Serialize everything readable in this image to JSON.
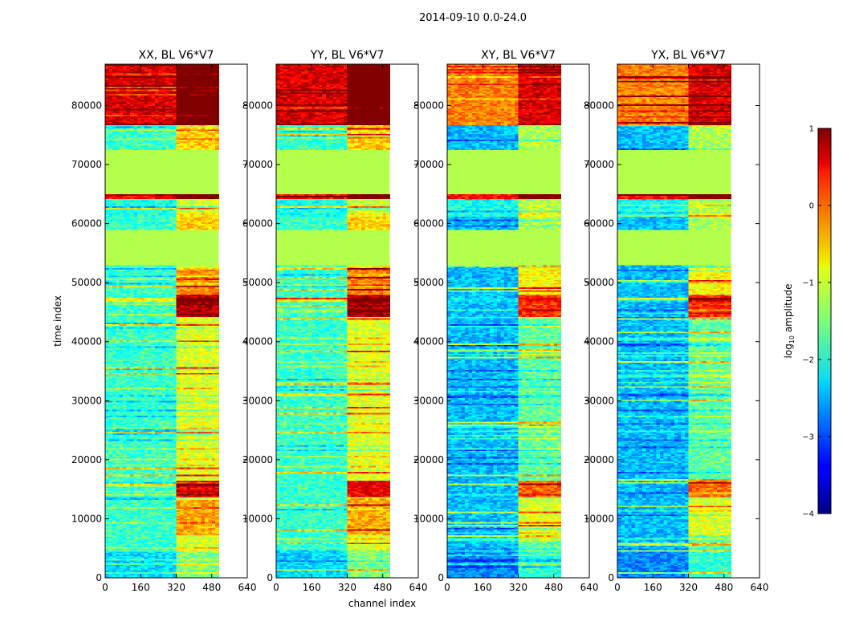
{
  "figure": {
    "suptitle": "2014-09-10 0.0-24.0",
    "xlabel": "channel index",
    "ylabel": "time index"
  },
  "chart_data": {
    "type": "heatmap",
    "title": "2014-09-10 0.0-24.0",
    "xlabel": "channel index",
    "ylabel": "time index",
    "xlim": [
      0,
      640
    ],
    "ylim": [
      0,
      87000
    ],
    "x_ticks": [
      0,
      160,
      320,
      480,
      640
    ],
    "y_ticks": [
      0,
      10000,
      20000,
      30000,
      40000,
      50000,
      60000,
      70000,
      80000
    ],
    "data_channel_extent": [
      0,
      512
    ],
    "panels": [
      {
        "title": "XX, BL V6*V7",
        "pol": "XX"
      },
      {
        "title": "YY, BL V6*V7",
        "pol": "YY"
      },
      {
        "title": "XY, BL V6*V7",
        "pol": "XY"
      },
      {
        "title": "YX, BL V6*V7",
        "pol": "YX"
      }
    ],
    "flagged_time_ranges": [
      [
        53000,
        59000
      ],
      [
        65000,
        72500
      ]
    ],
    "colorbar": {
      "label": "log10 amplitude",
      "label_main": "log",
      "label_sub": "10",
      "label_rest": " amplitude",
      "range": [
        -4,
        1
      ],
      "ticks": [
        1,
        0,
        -1,
        -2,
        -3,
        -4
      ],
      "tick_labels": [
        "1",
        "0",
        "−1",
        "−2",
        "−3",
        "−4"
      ],
      "colormap": "jet"
    }
  }
}
